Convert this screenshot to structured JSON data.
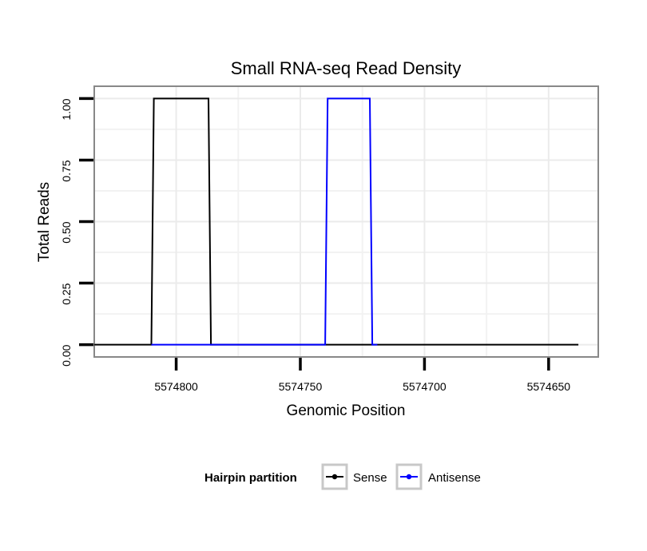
{
  "chart_data": {
    "type": "line",
    "title": "Small RNA-seq Read Density",
    "xlabel": "Genomic Position",
    "ylabel": "Total Reads",
    "xlim": [
      5574833,
      5574630
    ],
    "x_reversed": true,
    "ylim": [
      -0.05,
      1.05
    ],
    "x_ticks": [
      5574800,
      5574750,
      5574700,
      5574650
    ],
    "x_tick_labels": [
      "5574800",
      "5574750",
      "5574700",
      "5574650"
    ],
    "y_ticks": [
      0,
      0.25,
      0.5,
      0.75,
      1
    ],
    "y_tick_labels": [
      "0.00",
      "0.25",
      "0.50",
      "0.75",
      "1.00"
    ],
    "grid": true,
    "legend_title": "Hairpin partition",
    "legend_position": "bottom",
    "series": [
      {
        "name": "Sense",
        "color": "#000000",
        "x": [
          5574833,
          5574810,
          5574809,
          5574787,
          5574786,
          5574740,
          5574739,
          5574720,
          5574719,
          5574638
        ],
        "y": [
          0,
          0,
          1,
          1,
          0,
          0,
          0,
          0,
          0,
          0
        ]
      },
      {
        "name": "Antisense",
        "color": "#0000ff",
        "x": [
          5574810,
          5574787,
          5574786,
          5574740,
          5574739,
          5574722,
          5574721,
          5574720,
          5574719
        ],
        "y": [
          0,
          0,
          0,
          0,
          1,
          1,
          0,
          0,
          0
        ]
      }
    ]
  }
}
